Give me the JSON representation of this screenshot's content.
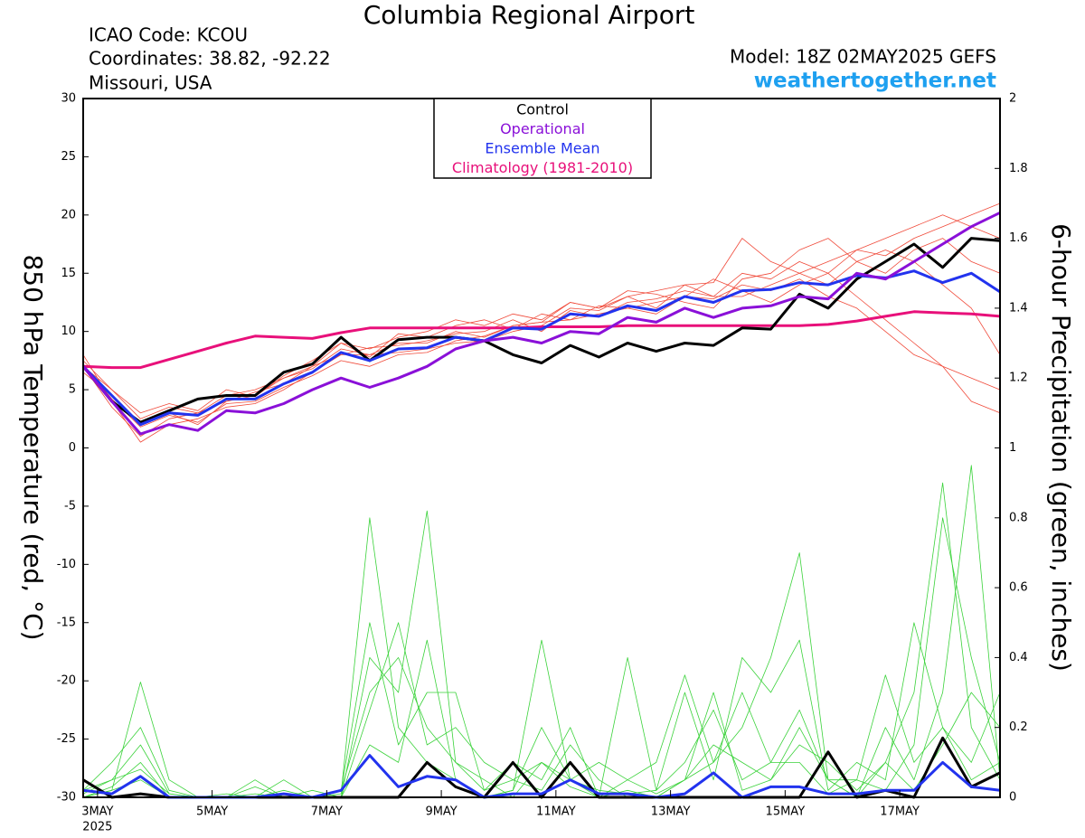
{
  "chart_data": {
    "type": "line",
    "title": "Columbia Regional Airport",
    "info_lines": [
      "ICAO Code: KCOU",
      "Coordinates: 38.82, -92.22",
      "Missouri, USA"
    ],
    "model": "Model: 18Z 02MAY2025 GEFS",
    "source": "weathertogether.net",
    "ylabel": "850 hPa Temperature (red, °C)",
    "y2label": "6-hour Precipitation (green, inches)",
    "x_year": "2025",
    "x": [
      -0.25,
      0.25,
      0.75,
      1.25,
      1.75,
      2.25,
      2.75,
      3.25,
      3.75,
      4.25,
      4.75,
      5.25,
      5.75,
      6.25,
      6.75,
      7.25,
      7.75,
      8.25,
      8.75,
      9.25,
      9.75,
      10.25,
      10.75,
      11.25,
      11.75,
      12.25,
      12.75,
      13.25,
      13.75,
      14.25,
      14.75,
      15.25,
      15.75
    ],
    "xlim": [
      -0.25,
      15.75
    ],
    "xticks": [
      {
        "value": 0,
        "label": "3MAY"
      },
      {
        "value": 2,
        "label": "5MAY"
      },
      {
        "value": 4,
        "label": "7MAY"
      },
      {
        "value": 6,
        "label": "9MAY"
      },
      {
        "value": 8,
        "label": "11MAY"
      },
      {
        "value": 10,
        "label": "13MAY"
      },
      {
        "value": 12,
        "label": "15MAY"
      },
      {
        "value": 14,
        "label": "17MAY"
      }
    ],
    "ylim": [
      -30,
      30
    ],
    "yticks": [
      -30,
      -25,
      -20,
      -15,
      -10,
      -5,
      0,
      5,
      10,
      15,
      20,
      25,
      30
    ],
    "y2lim": [
      0,
      2
    ],
    "y2ticks": [
      0,
      0.2,
      0.4,
      0.6,
      0.8,
      1,
      1.2,
      1.4,
      1.6,
      1.8,
      2
    ],
    "members": {
      "color": "#f04a3a",
      "values": [
        [
          7,
          5,
          2.5,
          3.5,
          3,
          4.5,
          5,
          6,
          7,
          9,
          8.5,
          9.5,
          10,
          11,
          10.5,
          11.5,
          11,
          12.5,
          12,
          13,
          13.5,
          14,
          13,
          15,
          14.5,
          16,
          15,
          17,
          16.5,
          18,
          19,
          20,
          21
        ],
        [
          8,
          4,
          0.5,
          2,
          2.5,
          3.5,
          3.8,
          5,
          6.5,
          8,
          8,
          9,
          9,
          10,
          9.5,
          10.5,
          10.8,
          11,
          11.5,
          12,
          12.5,
          13,
          12.8,
          14,
          13.5,
          14.5,
          13,
          12,
          10,
          8,
          7,
          6,
          5
        ],
        [
          6.5,
          4.5,
          2,
          3,
          2,
          4,
          4.5,
          6,
          6.8,
          8.5,
          8,
          8.2,
          8.5,
          9,
          9.2,
          10,
          10.5,
          12,
          11.8,
          13,
          12,
          14,
          14.2,
          18,
          16,
          15,
          14,
          16,
          17,
          16,
          14,
          12,
          8
        ],
        [
          7,
          3.5,
          1,
          2.5,
          3,
          4,
          4.8,
          5.5,
          7,
          8,
          8.6,
          8.8,
          9.2,
          9.8,
          10,
          11,
          10,
          11.8,
          11.3,
          12.5,
          12.8,
          13.5,
          13,
          13,
          14,
          15,
          16,
          17,
          18,
          19,
          20,
          19,
          18
        ],
        [
          7.5,
          5,
          3,
          3.8,
          3.2,
          5,
          4.4,
          6.2,
          7.5,
          9,
          7.8,
          9.8,
          9.5,
          10.5,
          11,
          10.2,
          11.5,
          11,
          12.2,
          12,
          11.5,
          13,
          14.5,
          13.5,
          12.5,
          14,
          15,
          13,
          11,
          9,
          7,
          4,
          3
        ],
        [
          7.2,
          4.2,
          1.8,
          2.8,
          2.2,
          3.8,
          4,
          5.2,
          6.2,
          7.5,
          7,
          8,
          8.2,
          9.2,
          9.6,
          10.5,
          10.8,
          12.5,
          12,
          13.5,
          13.2,
          12.5,
          12,
          14.5,
          15,
          17,
          18,
          16,
          15,
          17,
          18,
          16,
          15
        ]
      ]
    },
    "y2_members": {
      "color": "#3ad23a",
      "values": [
        [
          0,
          0.02,
          0.33,
          0.05,
          0,
          0,
          0,
          0.02,
          0,
          0.01,
          0.8,
          0.2,
          0.1,
          0.05,
          0,
          0.02,
          0.45,
          0.05,
          0,
          0.02,
          0,
          0.05,
          0.1,
          0.2,
          0.4,
          0.7,
          0.05,
          0,
          0.1,
          0.3,
          0.9,
          0.2,
          0.05
        ],
        [
          0.02,
          0.1,
          0.2,
          0.02,
          0,
          0.01,
          0,
          0.05,
          0,
          0,
          0.4,
          0.3,
          0.82,
          0.1,
          0.02,
          0.05,
          0.1,
          0.03,
          0,
          0.4,
          0.02,
          0.3,
          0.05,
          0.4,
          0.3,
          0.45,
          0.02,
          0.1,
          0.05,
          0.5,
          0.2,
          0.05,
          0.1
        ],
        [
          0,
          0.03,
          0.1,
          0,
          0,
          0,
          0.05,
          0,
          0,
          0.02,
          0.5,
          0.15,
          0.3,
          0.3,
          0.02,
          0.1,
          0.05,
          0.2,
          0,
          0.05,
          0.1,
          0.35,
          0.1,
          0.3,
          0.1,
          0.25,
          0.05,
          0,
          0.2,
          0.05,
          0.3,
          0.95,
          0.05
        ],
        [
          0.01,
          0.05,
          0.15,
          0.01,
          0,
          0,
          0.03,
          0,
          0,
          0.02,
          0.3,
          0.4,
          0.2,
          0.1,
          0.05,
          0,
          0.1,
          0.05,
          0.02,
          0.01,
          0.02,
          0.1,
          0.25,
          0.05,
          0.1,
          0.1,
          0.01,
          0.05,
          0.02,
          0.15,
          0.8,
          0.4,
          0.1
        ],
        [
          0,
          0.02,
          0.05,
          0,
          0,
          0,
          0,
          0.01,
          0,
          0,
          0.25,
          0.5,
          0.15,
          0.2,
          0.1,
          0.05,
          0.02,
          0.15,
          0.05,
          0,
          0,
          0.05,
          0.15,
          0.1,
          0.05,
          0.15,
          0.1,
          0.02,
          0.1,
          0.02,
          0.15,
          0.3,
          0.2
        ],
        [
          0.02,
          0.05,
          0.08,
          0.01,
          0,
          0,
          0.01,
          0,
          0.02,
          0,
          0.15,
          0.1,
          0.45,
          0.05,
          0,
          0.02,
          0.2,
          0.05,
          0.1,
          0.05,
          0.01,
          0.05,
          0.3,
          0.02,
          0.05,
          0.2,
          0.05,
          0.05,
          0.35,
          0.1,
          0.2,
          0.1,
          0.3
        ]
      ]
    },
    "y2_series": [
      {
        "color": "#000000",
        "values": [
          0.05,
          0,
          0.01,
          0,
          0,
          0,
          0,
          0,
          0,
          0,
          0,
          0,
          0.1,
          0.03,
          0,
          0.1,
          0,
          0.1,
          0,
          0,
          0,
          0,
          0,
          0,
          0,
          0,
          0.13,
          0,
          0.02,
          0,
          0.17,
          0.03,
          0.07
        ]
      },
      {
        "color": "#2233ee",
        "values": [
          0.02,
          0.01,
          0.06,
          0,
          0,
          0,
          0,
          0.01,
          0,
          0.02,
          0.12,
          0.03,
          0.06,
          0.05,
          0,
          0.01,
          0.01,
          0.05,
          0.01,
          0.01,
          0,
          0.01,
          0.07,
          0,
          0.03,
          0.03,
          0.01,
          0.01,
          0.02,
          0.02,
          0.1,
          0.03,
          0.02
        ]
      }
    ],
    "series": [
      {
        "name": "Control",
        "color": "#000000",
        "values": [
          7,
          4,
          2.2,
          3.2,
          4.2,
          4.5,
          4.5,
          6.5,
          7.2,
          9.5,
          7.5,
          9.3,
          9.5,
          9.5,
          9.2,
          8,
          7.3,
          8.8,
          7.8,
          9,
          8.3,
          9,
          8.8,
          10.3,
          10.2,
          13.2,
          12,
          14.5,
          16,
          17.5,
          15.5,
          18,
          17.8
        ]
      },
      {
        "name": "Operational",
        "color": "#8a10d8",
        "values": [
          7,
          4,
          1.2,
          2,
          1.5,
          3.2,
          3,
          3.8,
          5,
          6,
          5.2,
          6,
          7,
          8.5,
          9.2,
          9.5,
          9,
          10,
          9.8,
          11.2,
          10.8,
          12,
          11.2,
          12,
          12.2,
          13,
          12.8,
          15,
          14.5,
          16,
          17.5,
          19,
          20.2
        ]
      },
      {
        "name": "Ensemble Mean",
        "color": "#2233ee",
        "values": [
          7,
          4.5,
          2,
          3,
          2.8,
          4.2,
          4.2,
          5.5,
          6.5,
          8.2,
          7.5,
          8.5,
          8.6,
          9.5,
          9.2,
          10.3,
          10.2,
          11.5,
          11.3,
          12.2,
          11.8,
          13,
          12.5,
          13.5,
          13.6,
          14.2,
          14,
          14.8,
          14.6,
          15.2,
          14.2,
          15,
          13.4
        ]
      },
      {
        "name": "Climatology (1981-2010)",
        "color": "#e8107a",
        "values": [
          7,
          6.9,
          6.9,
          7.6,
          8.3,
          9,
          9.6,
          9.5,
          9.4,
          9.9,
          10.3,
          10.3,
          10.3,
          10.3,
          10.3,
          10.3,
          10.4,
          10.4,
          10.4,
          10.5,
          10.5,
          10.5,
          10.5,
          10.5,
          10.5,
          10.5,
          10.6,
          10.9,
          11.3,
          11.7,
          11.6,
          11.5,
          11.3
        ]
      }
    ]
  }
}
